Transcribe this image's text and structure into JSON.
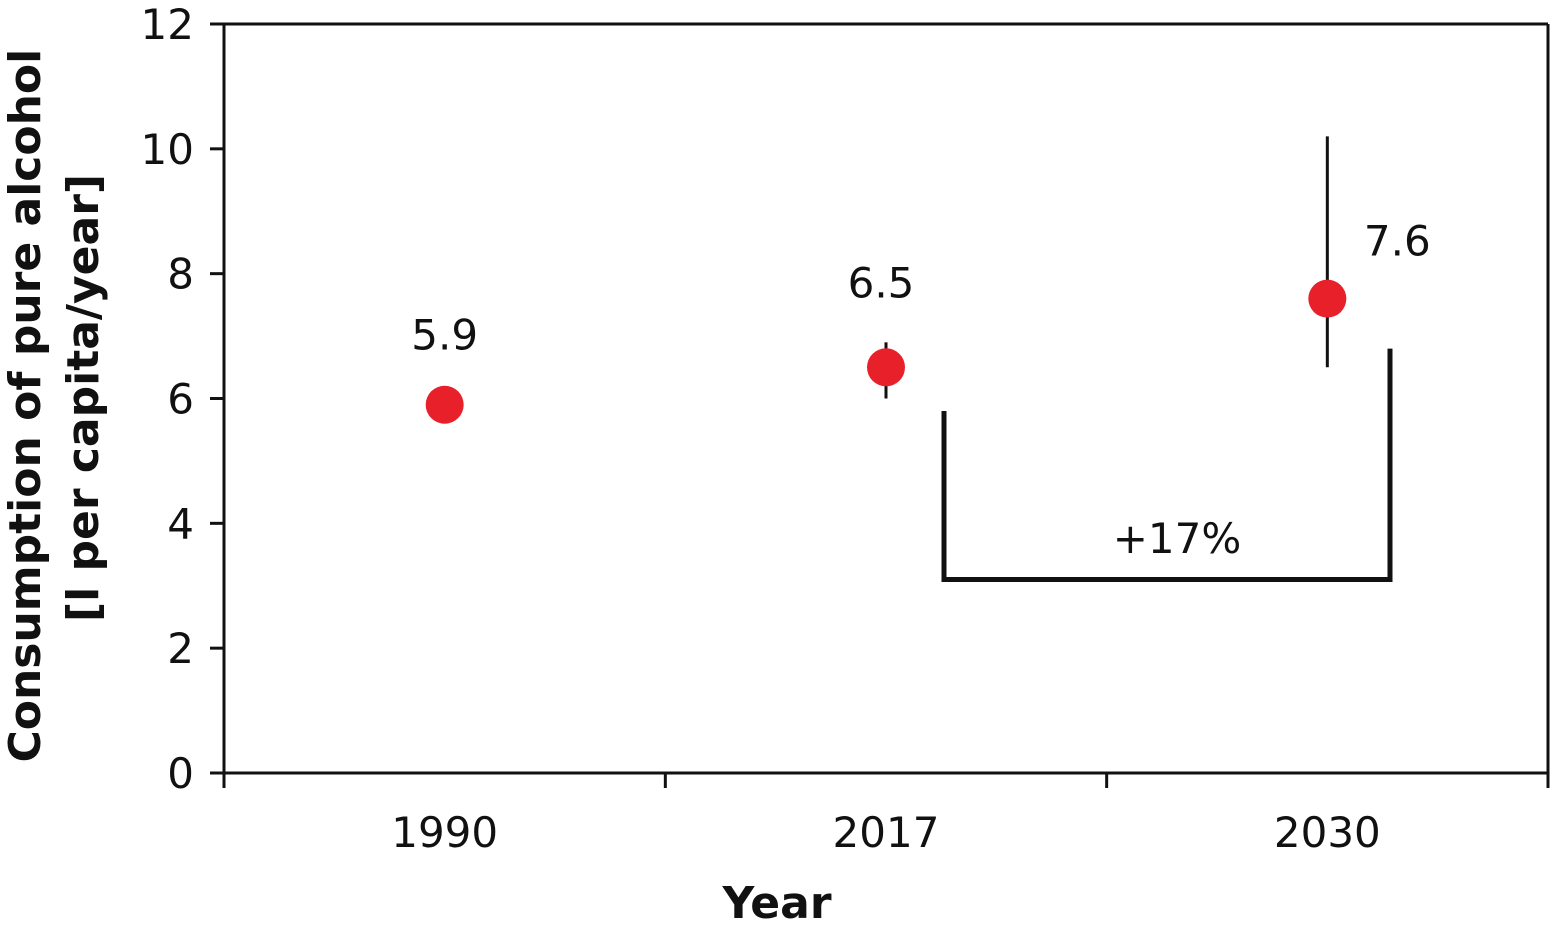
{
  "chart_data": {
    "type": "scatter",
    "title": "",
    "xlabel": "Year",
    "ylabel_lines": [
      "Consumption of pure alcohol",
      "[l per capita/year]"
    ],
    "categories": [
      "1990",
      "2017",
      "2030"
    ],
    "values": [
      5.9,
      6.5,
      7.6
    ],
    "value_labels": [
      "5.9",
      "6.5",
      "7.6"
    ],
    "error_bars": [
      null,
      [
        6.0,
        6.9
      ],
      [
        6.5,
        10.2
      ]
    ],
    "ylim": [
      0,
      12
    ],
    "yticks": [
      "0",
      "2",
      "4",
      "6",
      "8",
      "10",
      "12"
    ],
    "grid": false,
    "annotation": {
      "text": "+17%",
      "from_value": 5.8,
      "to_value": 6.8,
      "bracket_level": 3.1
    },
    "colors": {
      "marker": "#e8202a",
      "axis": "#111111"
    }
  }
}
